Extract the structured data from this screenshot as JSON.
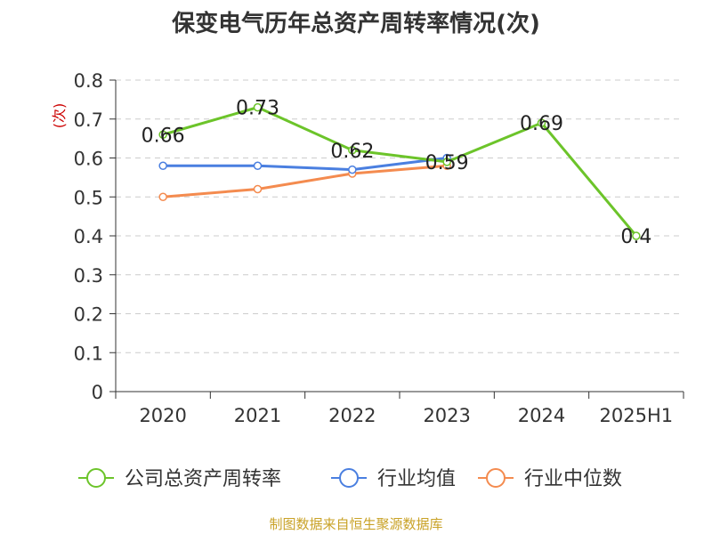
{
  "chart_data": {
    "type": "line",
    "title": "保变电气历年总资产周转率情况(次)",
    "ylabel": "(次)",
    "ylim": [
      0,
      0.8
    ],
    "yticks": [
      "0.8",
      "0.7",
      "0.6",
      "0.5",
      "0.4",
      "0.3",
      "0.2",
      "0.1",
      "0"
    ],
    "categories": [
      "2020",
      "2021",
      "2022",
      "2023",
      "2024",
      "2025H1"
    ],
    "grid": true,
    "legend_position": "bottom",
    "series": [
      {
        "name": "公司总资产周转率",
        "color": "#6cc42a",
        "values": [
          0.66,
          0.73,
          0.62,
          0.59,
          0.69,
          0.4
        ],
        "labels": [
          "0.66",
          "0.73",
          "0.62",
          "0.59",
          "0.69",
          "0.4"
        ]
      },
      {
        "name": "行业均值",
        "color": "#4a7fe0",
        "values": [
          0.58,
          0.58,
          0.57,
          0.6,
          null,
          null
        ]
      },
      {
        "name": "行业中位数",
        "color": "#f48b4f",
        "values": [
          0.5,
          0.52,
          0.56,
          0.58,
          null,
          null
        ]
      }
    ]
  },
  "source": "制图数据来自恒生聚源数据库"
}
